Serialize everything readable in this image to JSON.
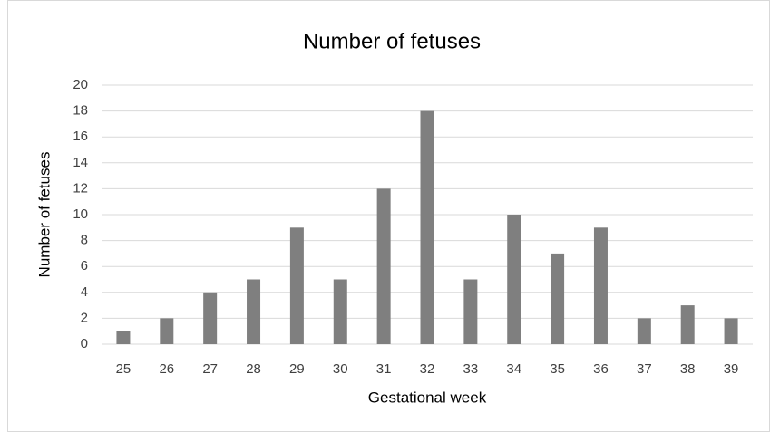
{
  "chart_data": {
    "type": "bar",
    "title": "Number of fetuses",
    "x_label": "Gestational week",
    "y_label": "Number of fetuses",
    "categories": [
      "25",
      "26",
      "27",
      "28",
      "29",
      "30",
      "31",
      "32",
      "33",
      "34",
      "35",
      "36",
      "37",
      "38",
      "39"
    ],
    "values": [
      1,
      2,
      4,
      5,
      9,
      5,
      12,
      18,
      5,
      10,
      7,
      9,
      2,
      3,
      2
    ],
    "color": "#7f7f7f",
    "ylim": [
      0,
      20
    ],
    "yticks": [
      0,
      2,
      4,
      6,
      8,
      10,
      12,
      14,
      16,
      18,
      20
    ],
    "grid": true
  }
}
